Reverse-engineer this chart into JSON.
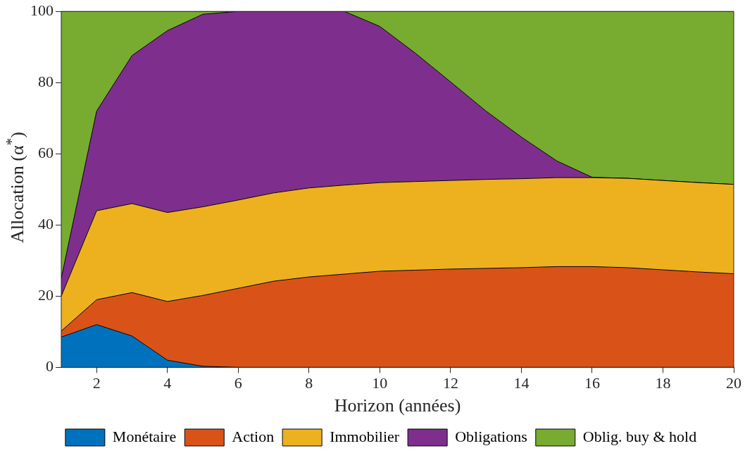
{
  "chart_data": {
    "type": "area",
    "stacked": true,
    "xlabel": "Horizon (années)",
    "ylabel": "Allocation (α$^{*}$)",
    "x": [
      1,
      2,
      3,
      4,
      5,
      6,
      7,
      8,
      9,
      10,
      11,
      12,
      13,
      14,
      15,
      16,
      17,
      18,
      19,
      20
    ],
    "xlim": [
      1,
      20
    ],
    "xticks": [
      2,
      4,
      6,
      8,
      10,
      12,
      14,
      16,
      18,
      20
    ],
    "ylim": [
      0,
      100
    ],
    "yticks": [
      0,
      20,
      40,
      60,
      80,
      100
    ],
    "grid": false,
    "legend": "bottom",
    "series": [
      {
        "name": "Monétaire",
        "color": "#0072bd",
        "values": [
          8.5,
          12,
          8.8,
          2,
          0.3,
          0,
          0,
          0,
          0,
          0,
          0,
          0,
          0,
          0,
          0,
          0,
          0,
          0,
          0,
          0
        ]
      },
      {
        "name": "Action",
        "color": "#d95319",
        "values": [
          1.7,
          7,
          12.2,
          16.5,
          19.9,
          22.2,
          24.2,
          25.4,
          26.2,
          27,
          27.3,
          27.6,
          27.8,
          28,
          28.3,
          28.3,
          28,
          27.4,
          26.8,
          26.3
        ]
      },
      {
        "name": "Immobilier",
        "color": "#edb120",
        "values": [
          9.8,
          25,
          25,
          25,
          24.9,
          24.8,
          24.8,
          25,
          25,
          24.9,
          24.9,
          24.9,
          25,
          25,
          25,
          25,
          25.1,
          25.1,
          25.1,
          25.1
        ]
      },
      {
        "name": "Obligations",
        "color": "#7e2f8e",
        "values": [
          5,
          28,
          41.6,
          51.1,
          54.1,
          53,
          51,
          49.6,
          48.8,
          43.9,
          36.1,
          27.7,
          19.2,
          11.7,
          4.7,
          0.1,
          0,
          0,
          0,
          0
        ]
      },
      {
        "name": "Oblig. buy & hold",
        "color": "#77ac30",
        "values": [
          75,
          28,
          12.4,
          5.4,
          0.8,
          0,
          0,
          0,
          0,
          4.2,
          11.7,
          19.8,
          28,
          35.3,
          42,
          46.6,
          46.9,
          47.5,
          48.1,
          48.6
        ]
      }
    ]
  }
}
